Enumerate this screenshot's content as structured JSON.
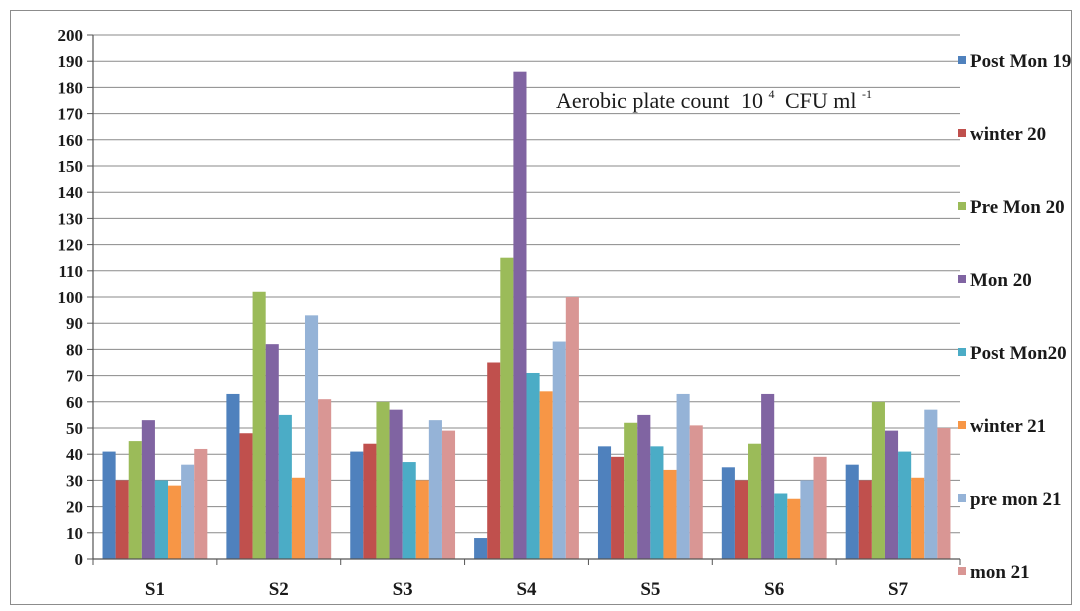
{
  "chart_data": {
    "type": "bar",
    "title": "Aerobic plate count",
    "title_unit": {
      "base": "10",
      "exp": "4",
      "mid": "CFU ml",
      "exp2": "-1"
    },
    "categories": [
      "S1",
      "S2",
      "S3",
      "S4",
      "S5",
      "S6",
      "S7"
    ],
    "ylim": [
      0,
      200
    ],
    "ytick_step": 10,
    "grid": true,
    "legend_position": "right",
    "series": [
      {
        "name": "Post Mon 19",
        "color": "#4f81bd",
        "values": [
          41,
          63,
          41,
          8,
          43,
          35,
          36
        ]
      },
      {
        "name": "winter 20",
        "color": "#c0504d",
        "values": [
          30,
          48,
          44,
          75,
          39,
          30,
          30
        ]
      },
      {
        "name": "Pre Mon 20",
        "color": "#9bbb59",
        "values": [
          45,
          102,
          60,
          115,
          52,
          44,
          60
        ]
      },
      {
        "name": "Mon 20",
        "color": "#8064a2",
        "values": [
          53,
          82,
          57,
          186,
          55,
          63,
          49
        ]
      },
      {
        "name": "Post Mon20",
        "color": "#4bacc6",
        "values": [
          30,
          55,
          37,
          71,
          43,
          25,
          41
        ]
      },
      {
        "name": "winter 21",
        "color": "#f79646",
        "values": [
          28,
          31,
          30,
          64,
          34,
          23,
          31
        ]
      },
      {
        "name": "pre mon 21",
        "color": "#95b3d7",
        "values": [
          36,
          93,
          53,
          83,
          63,
          30,
          57
        ]
      },
      {
        "name": "mon 21",
        "color": "#d99694",
        "values": [
          42,
          61,
          49,
          100,
          51,
          39,
          50
        ]
      }
    ]
  }
}
